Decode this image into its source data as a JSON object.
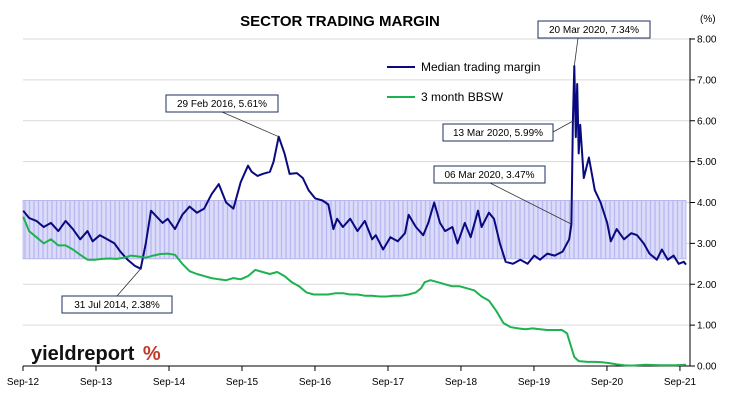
{
  "chart_data": {
    "type": "line",
    "title": "SECTOR TRADING MARGIN",
    "y_unit": "(%)",
    "ylim": [
      0,
      8
    ],
    "y_ticks": [
      "0.00",
      "1.00",
      "2.00",
      "3.00",
      "4.00",
      "5.00",
      "6.00",
      "7.00",
      "8.00"
    ],
    "x_range": [
      2012.667,
      2021.75
    ],
    "x_ticks": [
      {
        "label": "Sep-12",
        "x": 2012.667
      },
      {
        "label": "Sep-13",
        "x": 2013.667
      },
      {
        "label": "Sep-14",
        "x": 2014.667
      },
      {
        "label": "Sep-15",
        "x": 2015.667
      },
      {
        "label": "Sep-16",
        "x": 2016.667
      },
      {
        "label": "Sep-17",
        "x": 2017.667
      },
      {
        "label": "Sep-18",
        "x": 2018.667
      },
      {
        "label": "Sep-19",
        "x": 2019.667
      },
      {
        "label": "Sep-20",
        "x": 2020.667
      },
      {
        "label": "Sep-21",
        "x": 2021.667
      }
    ],
    "band": {
      "y_low": 2.62,
      "y_high": 4.05,
      "color": "#b8b8f0"
    },
    "legend_position": "top-right",
    "series": [
      {
        "name": "Median trading margin",
        "color": "#0a0a80",
        "points": [
          [
            2012.67,
            3.8
          ],
          [
            2012.75,
            3.62
          ],
          [
            2012.85,
            3.55
          ],
          [
            2012.95,
            3.4
          ],
          [
            2013.05,
            3.5
          ],
          [
            2013.15,
            3.3
          ],
          [
            2013.25,
            3.55
          ],
          [
            2013.35,
            3.35
          ],
          [
            2013.45,
            3.1
          ],
          [
            2013.55,
            3.3
          ],
          [
            2013.62,
            3.05
          ],
          [
            2013.72,
            3.2
          ],
          [
            2013.82,
            3.1
          ],
          [
            2013.92,
            3.0
          ],
          [
            2014.0,
            2.8
          ],
          [
            2014.1,
            2.6
          ],
          [
            2014.2,
            2.45
          ],
          [
            2014.28,
            2.38
          ],
          [
            2014.35,
            3.0
          ],
          [
            2014.42,
            3.8
          ],
          [
            2014.5,
            3.65
          ],
          [
            2014.58,
            3.5
          ],
          [
            2014.65,
            3.6
          ],
          [
            2014.75,
            3.35
          ],
          [
            2014.85,
            3.7
          ],
          [
            2014.95,
            3.9
          ],
          [
            2015.05,
            3.75
          ],
          [
            2015.15,
            3.85
          ],
          [
            2015.25,
            4.2
          ],
          [
            2015.35,
            4.45
          ],
          [
            2015.45,
            4.0
          ],
          [
            2015.55,
            3.85
          ],
          [
            2015.65,
            4.5
          ],
          [
            2015.75,
            4.9
          ],
          [
            2015.8,
            4.75
          ],
          [
            2015.88,
            4.65
          ],
          [
            2015.95,
            4.7
          ],
          [
            2016.05,
            4.75
          ],
          [
            2016.1,
            5.0
          ],
          [
            2016.17,
            5.61
          ],
          [
            2016.25,
            5.2
          ],
          [
            2016.32,
            4.7
          ],
          [
            2016.42,
            4.72
          ],
          [
            2016.5,
            4.6
          ],
          [
            2016.58,
            4.3
          ],
          [
            2016.67,
            4.1
          ],
          [
            2016.77,
            4.05
          ],
          [
            2016.85,
            3.95
          ],
          [
            2016.92,
            3.35
          ],
          [
            2016.97,
            3.6
          ],
          [
            2017.05,
            3.4
          ],
          [
            2017.15,
            3.6
          ],
          [
            2017.25,
            3.3
          ],
          [
            2017.35,
            3.55
          ],
          [
            2017.45,
            3.1
          ],
          [
            2017.5,
            3.2
          ],
          [
            2017.6,
            2.85
          ],
          [
            2017.7,
            3.15
          ],
          [
            2017.8,
            3.05
          ],
          [
            2017.9,
            3.25
          ],
          [
            2017.95,
            3.7
          ],
          [
            2018.05,
            3.4
          ],
          [
            2018.15,
            3.2
          ],
          [
            2018.22,
            3.5
          ],
          [
            2018.3,
            4.0
          ],
          [
            2018.38,
            3.5
          ],
          [
            2018.45,
            3.3
          ],
          [
            2018.55,
            3.4
          ],
          [
            2018.62,
            3.0
          ],
          [
            2018.72,
            3.5
          ],
          [
            2018.8,
            3.15
          ],
          [
            2018.9,
            3.8
          ],
          [
            2018.95,
            3.4
          ],
          [
            2019.05,
            3.75
          ],
          [
            2019.12,
            3.6
          ],
          [
            2019.2,
            3.0
          ],
          [
            2019.28,
            2.55
          ],
          [
            2019.38,
            2.5
          ],
          [
            2019.48,
            2.6
          ],
          [
            2019.58,
            2.5
          ],
          [
            2019.67,
            2.7
          ],
          [
            2019.75,
            2.6
          ],
          [
            2019.85,
            2.75
          ],
          [
            2019.95,
            2.7
          ],
          [
            2020.06,
            2.8
          ],
          [
            2020.15,
            3.1
          ],
          [
            2020.18,
            3.47
          ],
          [
            2020.2,
            5.99
          ],
          [
            2020.22,
            7.34
          ],
          [
            2020.24,
            5.6
          ],
          [
            2020.26,
            6.9
          ],
          [
            2020.28,
            5.2
          ],
          [
            2020.3,
            5.9
          ],
          [
            2020.35,
            4.6
          ],
          [
            2020.42,
            5.1
          ],
          [
            2020.5,
            4.3
          ],
          [
            2020.58,
            4.0
          ],
          [
            2020.67,
            3.5
          ],
          [
            2020.72,
            3.05
          ],
          [
            2020.8,
            3.35
          ],
          [
            2020.9,
            3.1
          ],
          [
            2021.0,
            3.25
          ],
          [
            2021.08,
            3.2
          ],
          [
            2021.17,
            3.0
          ],
          [
            2021.25,
            2.75
          ],
          [
            2021.35,
            2.6
          ],
          [
            2021.42,
            2.85
          ],
          [
            2021.5,
            2.6
          ],
          [
            2021.58,
            2.7
          ],
          [
            2021.65,
            2.5
          ],
          [
            2021.72,
            2.55
          ],
          [
            2021.75,
            2.48
          ]
        ]
      },
      {
        "name": "3 month BBSW",
        "color": "#1db250",
        "points": [
          [
            2012.67,
            3.65
          ],
          [
            2012.75,
            3.3
          ],
          [
            2012.85,
            3.15
          ],
          [
            2012.95,
            3.0
          ],
          [
            2013.05,
            3.1
          ],
          [
            2013.15,
            2.95
          ],
          [
            2013.25,
            2.95
          ],
          [
            2013.35,
            2.85
          ],
          [
            2013.45,
            2.72
          ],
          [
            2013.55,
            2.6
          ],
          [
            2013.65,
            2.6
          ],
          [
            2013.75,
            2.62
          ],
          [
            2013.85,
            2.63
          ],
          [
            2013.95,
            2.62
          ],
          [
            2014.05,
            2.65
          ],
          [
            2014.15,
            2.7
          ],
          [
            2014.25,
            2.68
          ],
          [
            2014.35,
            2.65
          ],
          [
            2014.45,
            2.7
          ],
          [
            2014.55,
            2.74
          ],
          [
            2014.65,
            2.75
          ],
          [
            2014.75,
            2.72
          ],
          [
            2014.85,
            2.5
          ],
          [
            2014.95,
            2.32
          ],
          [
            2015.05,
            2.25
          ],
          [
            2015.15,
            2.2
          ],
          [
            2015.25,
            2.15
          ],
          [
            2015.35,
            2.12
          ],
          [
            2015.45,
            2.1
          ],
          [
            2015.55,
            2.15
          ],
          [
            2015.65,
            2.12
          ],
          [
            2015.75,
            2.2
          ],
          [
            2015.85,
            2.35
          ],
          [
            2015.95,
            2.3
          ],
          [
            2016.05,
            2.25
          ],
          [
            2016.15,
            2.3
          ],
          [
            2016.25,
            2.2
          ],
          [
            2016.35,
            2.05
          ],
          [
            2016.45,
            1.95
          ],
          [
            2016.55,
            1.8
          ],
          [
            2016.65,
            1.75
          ],
          [
            2016.75,
            1.75
          ],
          [
            2016.85,
            1.75
          ],
          [
            2016.95,
            1.78
          ],
          [
            2017.05,
            1.78
          ],
          [
            2017.15,
            1.75
          ],
          [
            2017.25,
            1.75
          ],
          [
            2017.35,
            1.72
          ],
          [
            2017.45,
            1.72
          ],
          [
            2017.55,
            1.7
          ],
          [
            2017.65,
            1.7
          ],
          [
            2017.75,
            1.72
          ],
          [
            2017.85,
            1.72
          ],
          [
            2017.95,
            1.75
          ],
          [
            2018.05,
            1.8
          ],
          [
            2018.12,
            1.9
          ],
          [
            2018.17,
            2.05
          ],
          [
            2018.25,
            2.1
          ],
          [
            2018.35,
            2.05
          ],
          [
            2018.45,
            2.0
          ],
          [
            2018.55,
            1.95
          ],
          [
            2018.65,
            1.95
          ],
          [
            2018.75,
            1.9
          ],
          [
            2018.85,
            1.85
          ],
          [
            2018.95,
            1.7
          ],
          [
            2019.05,
            1.6
          ],
          [
            2019.15,
            1.35
          ],
          [
            2019.25,
            1.05
          ],
          [
            2019.35,
            0.95
          ],
          [
            2019.45,
            0.92
          ],
          [
            2019.55,
            0.9
          ],
          [
            2019.65,
            0.92
          ],
          [
            2019.75,
            0.9
          ],
          [
            2019.85,
            0.88
          ],
          [
            2019.95,
            0.88
          ],
          [
            2020.05,
            0.88
          ],
          [
            2020.12,
            0.8
          ],
          [
            2020.18,
            0.45
          ],
          [
            2020.22,
            0.22
          ],
          [
            2020.28,
            0.12
          ],
          [
            2020.4,
            0.1
          ],
          [
            2020.5,
            0.1
          ],
          [
            2020.6,
            0.09
          ],
          [
            2020.7,
            0.07
          ],
          [
            2020.8,
            0.04
          ],
          [
            2020.9,
            0.02
          ],
          [
            2021.0,
            0.01
          ],
          [
            2021.2,
            0.03
          ],
          [
            2021.4,
            0.02
          ],
          [
            2021.6,
            0.02
          ],
          [
            2021.75,
            0.03
          ]
        ]
      }
    ],
    "annotations": [
      {
        "text": "29 Feb 2016,  5.61%",
        "x": 2016.17,
        "y": 5.61
      },
      {
        "text": "31 Jul 2014,  2.38%",
        "x": 2014.28,
        "y": 2.38
      },
      {
        "text": "20 Mar 2020,  7.34%",
        "x": 2020.22,
        "y": 7.34
      },
      {
        "text": "13 Mar 2020,  5.99%",
        "x": 2020.2,
        "y": 5.99
      },
      {
        "text": "06 Mar 2020,  3.47%",
        "x": 2020.18,
        "y": 3.47
      }
    ]
  },
  "logo": {
    "text": "yieldreport",
    "percent": "%"
  }
}
